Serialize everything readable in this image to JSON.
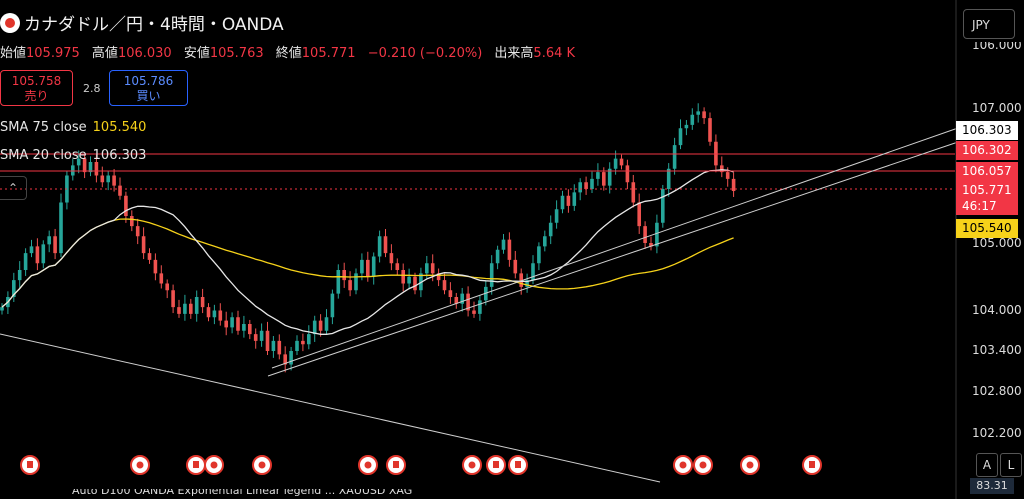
{
  "header": {
    "title": "カナダドル／円・4時間・OANDA",
    "open_label": "始値",
    "open": "105.975",
    "high_label": "高値",
    "high": "106.030",
    "low_label": "安値",
    "low": "105.763",
    "close_label": "終値",
    "close": "105.771",
    "change": "−0.210 (−0.20%)",
    "volume_label": "出来高",
    "volume": "5.64 K"
  },
  "trade": {
    "sell_price": "105.758",
    "sell_label": "売り",
    "spread": "2.8",
    "buy_price": "105.786",
    "buy_label": "買い"
  },
  "indicators": {
    "sma75_label": "SMA 75 close",
    "sma75_value": "105.540",
    "sma20_label": "SMA 20 close",
    "sma20_value": "106.303"
  },
  "currency": "JPY",
  "axis": {
    "top_partial": "106.000",
    "ticks": [
      "107.000",
      "105.000",
      "104.000",
      "103.400",
      "102.800",
      "102.200"
    ]
  },
  "price_tags": {
    "sma20": "106.303",
    "line1": "106.302",
    "line2": "106.057",
    "last": "105.771",
    "countdown": "46:17",
    "sma75": "105.540"
  },
  "controls": {
    "auto": "A",
    "log": "L"
  },
  "colors": {
    "up": "#26a69a",
    "down": "#ef5350",
    "sma20": "#e6e6e6",
    "sma75": "#f6d21a",
    "red_line": "#f23645",
    "trend": "#cfcfcf"
  },
  "bottom": {
    "text": "Auto D100 OANDA Exponential Linear legend ... XAUUSD XAG",
    "value": "83.31"
  },
  "chart_data": {
    "type": "candlestick",
    "series_name": "CADJPY 4h",
    "ylim": [
      102.0,
      107.4
    ],
    "scale": "log",
    "closes": [
      104.05,
      104.2,
      104.45,
      104.6,
      104.85,
      104.95,
      104.7,
      104.98,
      105.1,
      104.85,
      105.6,
      106.0,
      106.15,
      106.25,
      106.05,
      106.2,
      106.0,
      105.9,
      106.0,
      105.85,
      105.7,
      105.4,
      105.25,
      105.1,
      104.85,
      104.75,
      104.55,
      104.4,
      104.3,
      104.05,
      103.95,
      104.1,
      103.95,
      104.2,
      104.05,
      103.9,
      104.0,
      103.85,
      103.75,
      103.9,
      103.7,
      103.8,
      103.65,
      103.55,
      103.7,
      103.4,
      103.55,
      103.35,
      103.2,
      103.4,
      103.55,
      103.5,
      103.65,
      103.85,
      103.7,
      103.9,
      104.25,
      104.6,
      104.45,
      104.3,
      104.55,
      104.75,
      104.5,
      104.8,
      105.1,
      104.85,
      104.7,
      104.6,
      104.4,
      104.5,
      104.3,
      104.55,
      104.7,
      104.55,
      104.45,
      104.3,
      104.2,
      104.1,
      104.25,
      104.0,
      103.95,
      104.15,
      104.35,
      104.7,
      104.9,
      105.05,
      104.75,
      104.55,
      104.35,
      104.45,
      104.7,
      104.95,
      105.1,
      105.3,
      105.5,
      105.7,
      105.55,
      105.75,
      105.9,
      105.8,
      105.95,
      106.05,
      105.85,
      106.1,
      106.25,
      106.15,
      105.9,
      105.6,
      105.25,
      105.0,
      104.95,
      105.3,
      105.8,
      106.1,
      106.45,
      106.7,
      106.75,
      106.9,
      106.95,
      106.85,
      106.5,
      106.15,
      106.05,
      105.95,
      105.77
    ],
    "sma20": "overlay (white)",
    "sma75": "overlay (yellow)"
  }
}
